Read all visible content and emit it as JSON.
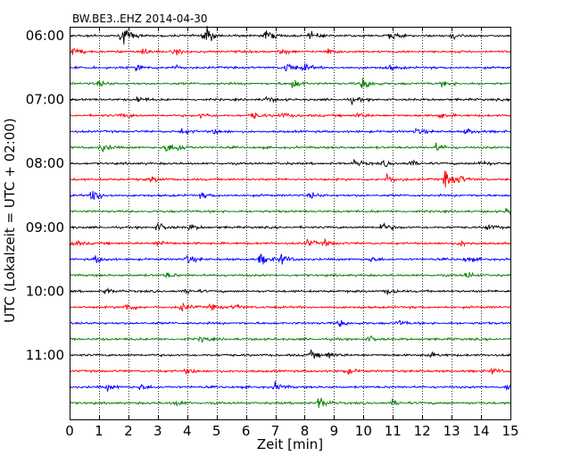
{
  "chart_data": {
    "type": "line",
    "title": "BW.BE3..EHZ 2014-04-30",
    "xlabel": "Zeit  [min]",
    "ylabel": "UTC (Lokalzeit = UTC + 02:00)",
    "xlim": [
      0,
      15
    ],
    "x_ticks": [
      "0",
      "1",
      "2",
      "3",
      "4",
      "5",
      "6",
      "7",
      "8",
      "9",
      "10",
      "11",
      "12",
      "13",
      "14",
      "15"
    ],
    "y_tick_labels": [
      "06:00",
      "07:00",
      "08:00",
      "09:00",
      "10:00",
      "11:00"
    ],
    "grid": "vertical dotted",
    "trace_interval_minutes": 15,
    "trace_colors": [
      "#000000",
      "#ff0000",
      "#0000ff",
      "#008000"
    ],
    "traces": [
      {
        "start": "06:00",
        "events": [
          [
            1.8,
            1.0
          ],
          [
            4.6,
            1.0
          ],
          [
            6.7,
            0.55
          ],
          [
            8.2,
            0.35
          ],
          [
            10.9,
            0.4
          ],
          [
            13.0,
            0.3
          ]
        ]
      },
      {
        "start": "06:15",
        "events": [
          [
            0.1,
            0.4
          ],
          [
            2.5,
            0.4
          ],
          [
            3.6,
            0.3
          ],
          [
            7.2,
            0.3
          ],
          [
            8.8,
            0.3
          ]
        ]
      },
      {
        "start": "06:30",
        "events": [
          [
            2.3,
            0.35
          ],
          [
            3.5,
            0.3
          ],
          [
            7.4,
            0.55
          ],
          [
            8.0,
            0.35
          ],
          [
            10.8,
            0.3
          ]
        ]
      },
      {
        "start": "06:45",
        "events": [
          [
            1.0,
            0.3
          ],
          [
            7.6,
            0.6
          ],
          [
            10.0,
            0.75
          ],
          [
            12.7,
            0.3
          ]
        ]
      },
      {
        "start": "07:00",
        "events": [
          [
            2.3,
            0.3
          ],
          [
            6.7,
            0.3
          ],
          [
            9.6,
            0.3
          ]
        ]
      },
      {
        "start": "07:15",
        "events": [
          [
            1.8,
            0.3
          ],
          [
            4.5,
            0.3
          ],
          [
            6.2,
            0.4
          ],
          [
            7.2,
            0.3
          ],
          [
            9.8,
            0.3
          ],
          [
            12.6,
            0.3
          ]
        ]
      },
      {
        "start": "07:30",
        "events": [
          [
            3.8,
            0.3
          ],
          [
            4.9,
            0.3
          ],
          [
            11.8,
            0.3
          ],
          [
            13.5,
            0.3
          ]
        ]
      },
      {
        "start": "07:45",
        "events": [
          [
            1.1,
            0.45
          ],
          [
            3.3,
            0.55
          ],
          [
            3.7,
            0.3
          ],
          [
            12.5,
            0.45
          ]
        ]
      },
      {
        "start": "08:00",
        "events": [
          [
            9.7,
            0.35
          ],
          [
            10.7,
            0.3
          ],
          [
            11.6,
            0.3
          ],
          [
            14.0,
            0.3
          ]
        ]
      },
      {
        "start": "08:15",
        "events": [
          [
            2.8,
            0.3
          ],
          [
            10.8,
            0.5
          ],
          [
            12.8,
            1.0
          ],
          [
            13.3,
            0.3
          ]
        ]
      },
      {
        "start": "08:30",
        "events": [
          [
            0.8,
            0.8
          ],
          [
            4.5,
            0.3
          ],
          [
            8.2,
            0.3
          ]
        ]
      },
      {
        "start": "08:45",
        "events": [
          [
            14.9,
            0.4
          ]
        ]
      },
      {
        "start": "09:00",
        "events": [
          [
            3.0,
            0.45
          ],
          [
            4.1,
            0.3
          ],
          [
            10.6,
            0.5
          ],
          [
            14.2,
            0.35
          ]
        ]
      },
      {
        "start": "09:15",
        "events": [
          [
            0.1,
            0.35
          ],
          [
            3.0,
            0.3
          ],
          [
            8.1,
            0.35
          ],
          [
            8.7,
            0.3
          ],
          [
            13.3,
            0.3
          ]
        ]
      },
      {
        "start": "09:30",
        "events": [
          [
            0.9,
            0.4
          ],
          [
            4.0,
            0.45
          ],
          [
            6.5,
            0.6
          ],
          [
            7.2,
            0.55
          ],
          [
            10.2,
            0.3
          ],
          [
            13.5,
            0.35
          ]
        ]
      },
      {
        "start": "09:45",
        "events": [
          [
            3.3,
            0.3
          ],
          [
            13.5,
            0.4
          ]
        ]
      },
      {
        "start": "10:00",
        "events": [
          [
            1.2,
            0.3
          ],
          [
            4.0,
            0.3
          ],
          [
            10.8,
            0.35
          ]
        ]
      },
      {
        "start": "10:15",
        "events": [
          [
            1.9,
            0.5
          ],
          [
            3.8,
            0.45
          ],
          [
            4.8,
            0.3
          ],
          [
            5.6,
            0.3
          ]
        ]
      },
      {
        "start": "10:30",
        "events": [
          [
            9.2,
            0.35
          ],
          [
            11.2,
            0.3
          ]
        ]
      },
      {
        "start": "10:45",
        "events": [
          [
            4.5,
            0.3
          ],
          [
            10.2,
            0.3
          ]
        ]
      },
      {
        "start": "11:00",
        "events": [
          [
            8.2,
            0.4
          ],
          [
            8.8,
            0.35
          ],
          [
            12.2,
            0.3
          ]
        ]
      },
      {
        "start": "11:15",
        "events": [
          [
            4.0,
            0.3
          ],
          [
            9.4,
            0.35
          ],
          [
            14.4,
            0.3
          ]
        ]
      },
      {
        "start": "11:30",
        "events": [
          [
            1.3,
            0.3
          ],
          [
            2.4,
            0.3
          ],
          [
            7.0,
            0.4
          ],
          [
            14.9,
            0.35
          ]
        ]
      },
      {
        "start": "11:45",
        "events": [
          [
            8.5,
            0.7
          ],
          [
            3.6,
            0.3
          ],
          [
            11.0,
            0.3
          ]
        ]
      }
    ]
  }
}
